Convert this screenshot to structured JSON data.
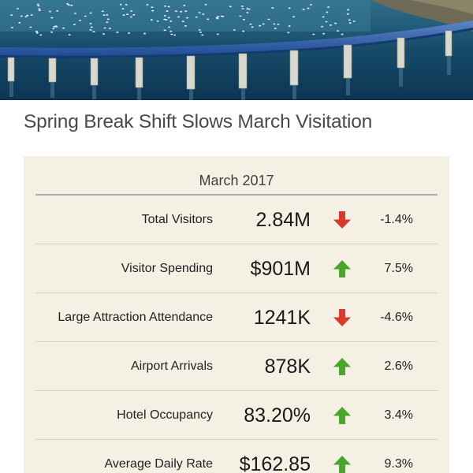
{
  "hero": {
    "icon": "bridge-bay-photo"
  },
  "headline": "Spring Break Shift Slows March Visitation",
  "card": {
    "period": "March 2017",
    "colors": {
      "up": "#4aa62c",
      "down": "#d93a2b"
    },
    "metrics": [
      {
        "label": "Total Visitors",
        "value": "2.84M",
        "direction": "down",
        "change": "-1.4%"
      },
      {
        "label": "Visitor Spending",
        "value": "$901M",
        "direction": "up",
        "change": "7.5%"
      },
      {
        "label": "Large Attraction Attendance",
        "value": "1241K",
        "direction": "down",
        "change": "-4.6%"
      },
      {
        "label": "Airport Arrivals",
        "value": "878K",
        "direction": "up",
        "change": "2.6%"
      },
      {
        "label": "Hotel Occupancy",
        "value": "83.20%",
        "direction": "up",
        "change": "3.4%"
      },
      {
        "label": "Average Daily Rate",
        "value": "$162.85",
        "direction": "up",
        "change": "9.3%"
      }
    ]
  }
}
